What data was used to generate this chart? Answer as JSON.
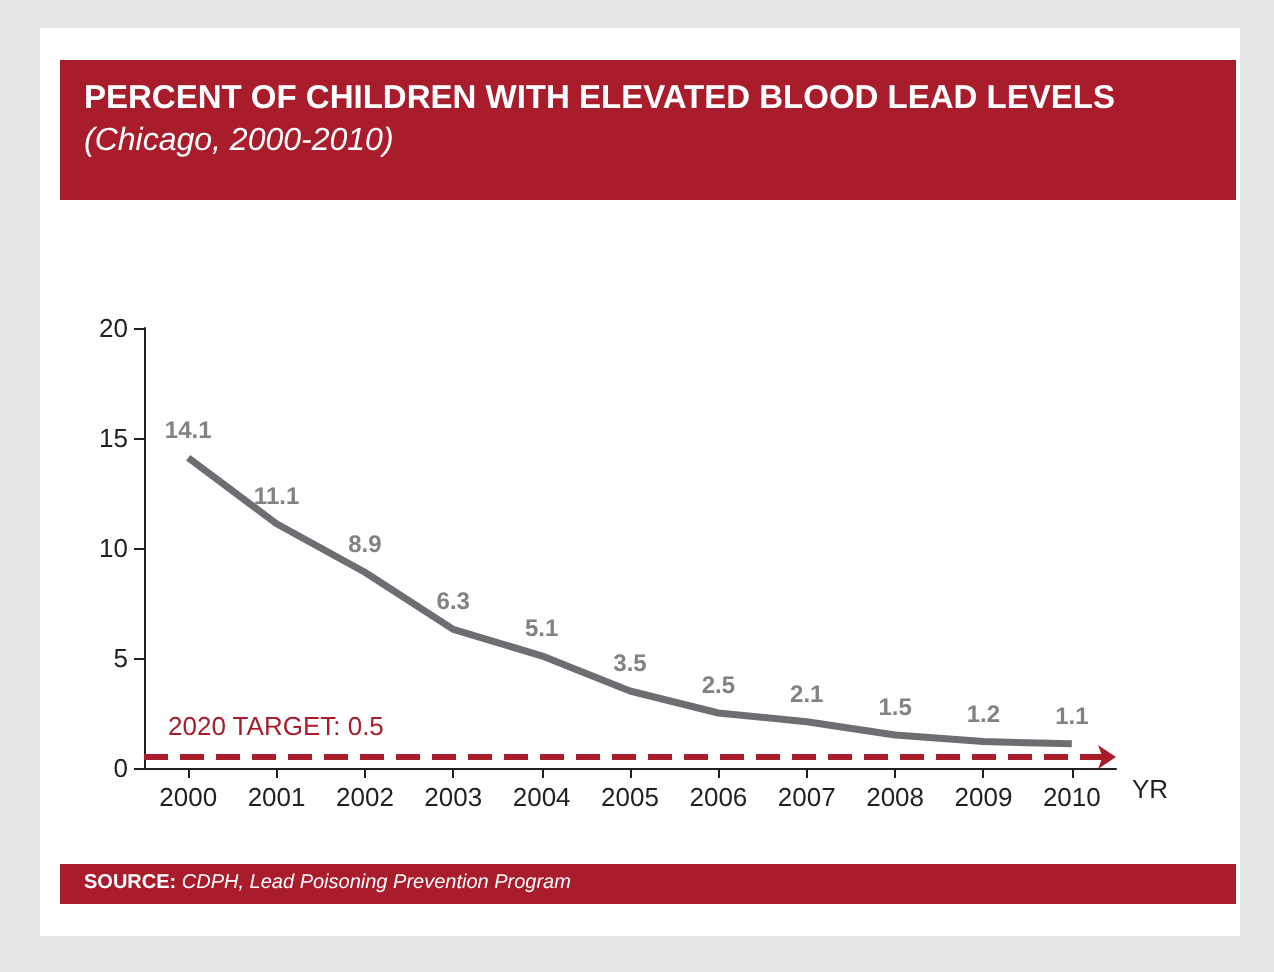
{
  "chart_data": {
    "type": "line",
    "title": "PERCENT OF CHILDREN WITH ELEVATED BLOOD LEAD LEVELS",
    "subtitle": "(Chicago, 2000-2010)",
    "xlabel": "YR",
    "categories": [
      "2000",
      "2001",
      "2002",
      "2003",
      "2004",
      "2005",
      "2006",
      "2007",
      "2008",
      "2009",
      "2010"
    ],
    "series": [
      {
        "color": "#6d6e71",
        "values": [
          14.1,
          11.1,
          8.9,
          6.3,
          5.1,
          3.5,
          2.5,
          2.1,
          1.5,
          1.2,
          1.1
        ]
      }
    ],
    "ylim": [
      0,
      20
    ],
    "yticks": [
      0,
      5,
      10,
      15,
      20
    ],
    "grid": false,
    "marker": "none",
    "line_style": "solid",
    "data_labels": true,
    "ref_lines": [
      {
        "axis": "y",
        "value": 0.5,
        "label": "2020 TARGET: 0.5",
        "color": "#a81c2c",
        "line_style": "dashed"
      }
    ],
    "annotations": [
      "SOURCE: CDPH, Lead Poisoning Prevention Program"
    ]
  }
}
